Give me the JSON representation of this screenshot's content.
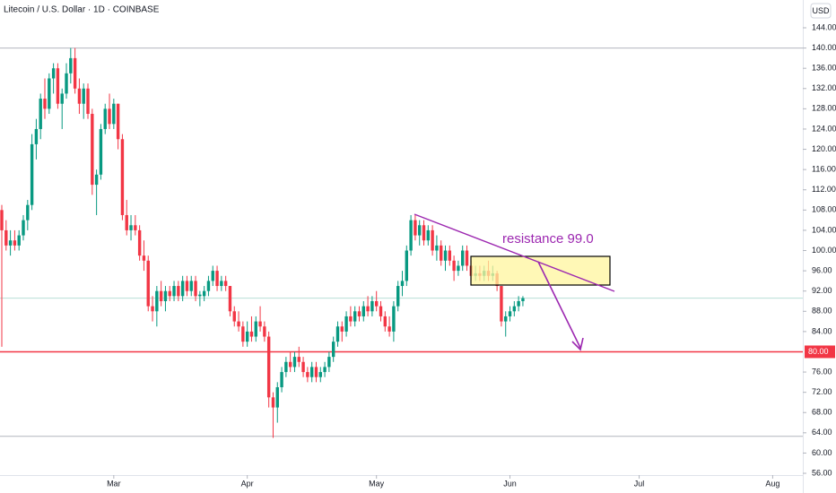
{
  "chart_data": {
    "type": "candlestick",
    "title": "Litecoin / U.S. Dollar · 1D · COINBASE",
    "currency": "USD",
    "up_color": "#089981",
    "down_color": "#f23645",
    "ylim": [
      55.65,
      149.49
    ],
    "xlim": [
      0,
      186
    ],
    "yticks": [
      {
        "value": 56,
        "label": "56.00"
      },
      {
        "value": 60,
        "label": "60.00"
      },
      {
        "value": 64,
        "label": "64.00"
      },
      {
        "value": 68,
        "label": "68.00"
      },
      {
        "value": 72,
        "label": "72.00"
      },
      {
        "value": 76,
        "label": "76.00"
      },
      {
        "value": 84,
        "label": "84.00"
      },
      {
        "value": 88,
        "label": "88.00"
      },
      {
        "value": 92,
        "label": "92.00"
      },
      {
        "value": 96,
        "label": "96.00"
      },
      {
        "value": 100,
        "label": "100.00"
      },
      {
        "value": 104,
        "label": "104.00"
      },
      {
        "value": 108,
        "label": "108.00"
      },
      {
        "value": 112,
        "label": "112.00"
      },
      {
        "value": 116,
        "label": "116.00"
      },
      {
        "value": 120,
        "label": "120.00"
      },
      {
        "value": 124,
        "label": "124.00"
      },
      {
        "value": 128,
        "label": "128.00"
      },
      {
        "value": 132,
        "label": "132.00"
      },
      {
        "value": 136,
        "label": "136.00"
      },
      {
        "value": 140,
        "label": "140.00"
      },
      {
        "value": 144,
        "label": "144.00"
      }
    ],
    "xticks": [
      {
        "value": 26,
        "label": "Mar"
      },
      {
        "value": 57,
        "label": "Apr"
      },
      {
        "value": 87,
        "label": "May"
      },
      {
        "value": 118,
        "label": "Jun"
      },
      {
        "value": 148,
        "label": "Jul"
      },
      {
        "value": 179,
        "label": "Aug"
      }
    ],
    "lines": [
      {
        "value": 80,
        "label": "80.00",
        "color": "#f23645"
      },
      {
        "value": 140,
        "color": "#b2b5be"
      },
      {
        "value": 63.3,
        "color": "#b2b5be"
      },
      {
        "value": 90.6,
        "color": "#b7dfd6"
      }
    ],
    "annotation": "resistance 99.0",
    "ohlc": [
      [
        108,
        109,
        81,
        104
      ],
      [
        104,
        106,
        100,
        101
      ],
      [
        101,
        104,
        99,
        102
      ],
      [
        102,
        104,
        100,
        101
      ],
      [
        101,
        104,
        100,
        103
      ],
      [
        103,
        107,
        102,
        106
      ],
      [
        106,
        110,
        104,
        109
      ],
      [
        109,
        123,
        108,
        121
      ],
      [
        121,
        126,
        118,
        124
      ],
      [
        124,
        131,
        122,
        130
      ],
      [
        130,
        134,
        126,
        128
      ],
      [
        128,
        135,
        127,
        134
      ],
      [
        134,
        137,
        131,
        136
      ],
      [
        136,
        137,
        128,
        129
      ],
      [
        129,
        132,
        124,
        131
      ],
      [
        131,
        137,
        130,
        135
      ],
      [
        135,
        140,
        133,
        138
      ],
      [
        138,
        140,
        131,
        132
      ],
      [
        132,
        134,
        127,
        129
      ],
      [
        129,
        133,
        126,
        132
      ],
      [
        132,
        133,
        126,
        127
      ],
      [
        127,
        128,
        111,
        113
      ],
      [
        113,
        116,
        107,
        115
      ],
      [
        115,
        125,
        114,
        124
      ],
      [
        124,
        129,
        123,
        128
      ],
      [
        128,
        131,
        124,
        125
      ],
      [
        125,
        130,
        124,
        129
      ],
      [
        129,
        129,
        120,
        122
      ],
      [
        122,
        123,
        106,
        107
      ],
      [
        107,
        110,
        103,
        104
      ],
      [
        104,
        107,
        102,
        105
      ],
      [
        105,
        107,
        103,
        104
      ],
      [
        104,
        105,
        98,
        99
      ],
      [
        99,
        102,
        96,
        98
      ],
      [
        98,
        99,
        88,
        89
      ],
      [
        89,
        91,
        86,
        88
      ],
      [
        88,
        93,
        85,
        92
      ],
      [
        92,
        94,
        89,
        90
      ],
      [
        90,
        93,
        88,
        92
      ],
      [
        92,
        93,
        90,
        91
      ],
      [
        91,
        94,
        90,
        93
      ],
      [
        93,
        94,
        90,
        91
      ],
      [
        91,
        95,
        90,
        94
      ],
      [
        94,
        95,
        91,
        92
      ],
      [
        92,
        95,
        91,
        94
      ],
      [
        94,
        95,
        90,
        91
      ],
      [
        91,
        92,
        89,
        91.3
      ],
      [
        91,
        93,
        90,
        92
      ],
      [
        92,
        95,
        91,
        94
      ],
      [
        94,
        97,
        93,
        96
      ],
      [
        96,
        97,
        92,
        93
      ],
      [
        93,
        95,
        92,
        94
      ],
      [
        94,
        95,
        92,
        93
      ],
      [
        93,
        93,
        87,
        88
      ],
      [
        88,
        89,
        85,
        86
      ],
      [
        86,
        88,
        84,
        85
      ],
      [
        85,
        86,
        81,
        82
      ],
      [
        82,
        86,
        81,
        84
      ],
      [
        84,
        87,
        82,
        83
      ],
      [
        83,
        87,
        82,
        86
      ],
      [
        86,
        89,
        84,
        85
      ],
      [
        85,
        86,
        82,
        83
      ],
      [
        83,
        84,
        69,
        71
      ],
      [
        71,
        72,
        63,
        69
      ],
      [
        69,
        74,
        66,
        73
      ],
      [
        73,
        77,
        72,
        76
      ],
      [
        76,
        79,
        75,
        78
      ],
      [
        78,
        80,
        76,
        77
      ],
      [
        77,
        80,
        76,
        79
      ],
      [
        79,
        81,
        77,
        78
      ],
      [
        78,
        79,
        75,
        76
      ],
      [
        76,
        77,
        74,
        75
      ],
      [
        75,
        78,
        74,
        77
      ],
      [
        77,
        78,
        74,
        75
      ],
      [
        75,
        77,
        74,
        76
      ],
      [
        76,
        78,
        75,
        77
      ],
      [
        77,
        80,
        76,
        79
      ],
      [
        79,
        83,
        78,
        82
      ],
      [
        82,
        86,
        81,
        85
      ],
      [
        85,
        86,
        82,
        84
      ],
      [
        84,
        88,
        83,
        87
      ],
      [
        87,
        89,
        85,
        86
      ],
      [
        86,
        89,
        85,
        88
      ],
      [
        88,
        89,
        86,
        87
      ],
      [
        87,
        90,
        86,
        89
      ],
      [
        89,
        91,
        87,
        88
      ],
      [
        88,
        91,
        87,
        90
      ],
      [
        90,
        92,
        88,
        89
      ],
      [
        89,
        90,
        86,
        87
      ],
      [
        87,
        88,
        84,
        85
      ],
      [
        85,
        87,
        83,
        84
      ],
      [
        84,
        90,
        82,
        89
      ],
      [
        89,
        94,
        88,
        93
      ],
      [
        93,
        96,
        91,
        94
      ],
      [
        94,
        101,
        93,
        100
      ],
      [
        100,
        107,
        99,
        106
      ],
      [
        106,
        107,
        102,
        103
      ],
      [
        103,
        106,
        101,
        105
      ],
      [
        105,
        106,
        101,
        102
      ],
      [
        102,
        105,
        101,
        104
      ],
      [
        104,
        105,
        99,
        100
      ],
      [
        100,
        103,
        98,
        101
      ],
      [
        101,
        102,
        97,
        98
      ],
      [
        98,
        101,
        96,
        100
      ],
      [
        100,
        101,
        97,
        98
      ],
      [
        98,
        99,
        94,
        96
      ],
      [
        96,
        98,
        95,
        97
      ],
      [
        97,
        101,
        96,
        100
      ],
      [
        100,
        101,
        96,
        97
      ],
      [
        97,
        98,
        94,
        95
      ],
      [
        95,
        97,
        94,
        95.5
      ],
      [
        95.5,
        97,
        94,
        95
      ],
      [
        95,
        97,
        94,
        96
      ],
      [
        96,
        98,
        94,
        95
      ],
      [
        95,
        97,
        94,
        95.5
      ],
      [
        95.5,
        96,
        92,
        93
      ],
      [
        93,
        93,
        85,
        86
      ],
      [
        86,
        88,
        83,
        87
      ],
      [
        87,
        89,
        86,
        88
      ],
      [
        88,
        90,
        87,
        89
      ],
      [
        89,
        91,
        88,
        90
      ],
      [
        90,
        91,
        89,
        90.6
      ]
    ]
  }
}
